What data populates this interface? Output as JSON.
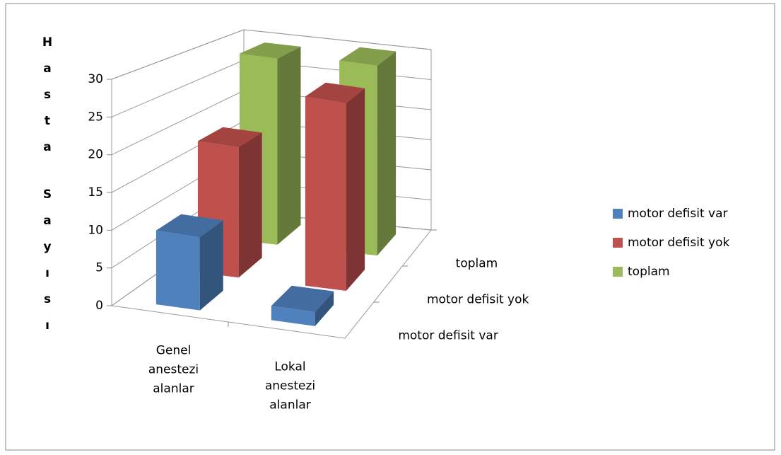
{
  "chart_data": {
    "type": "bar3d",
    "y_label": "Hasta Sayısı",
    "categories": [
      "Genel anestezi alanlar",
      "Lokal anestezi alanlar"
    ],
    "series": [
      {
        "name": "motor defisit var",
        "color": "#4f81bd",
        "values": [
          10,
          2
        ]
      },
      {
        "name": "motor defisit yok",
        "color": "#c0504d",
        "values": [
          19,
          28
        ]
      },
      {
        "name": "toplam",
        "color": "#9bbb59",
        "values": [
          29,
          30
        ]
      }
    ],
    "ylim": [
      0,
      30
    ],
    "yticks": [
      0,
      5,
      10,
      15,
      20,
      25,
      30
    ],
    "grid": true,
    "legend": "right"
  }
}
